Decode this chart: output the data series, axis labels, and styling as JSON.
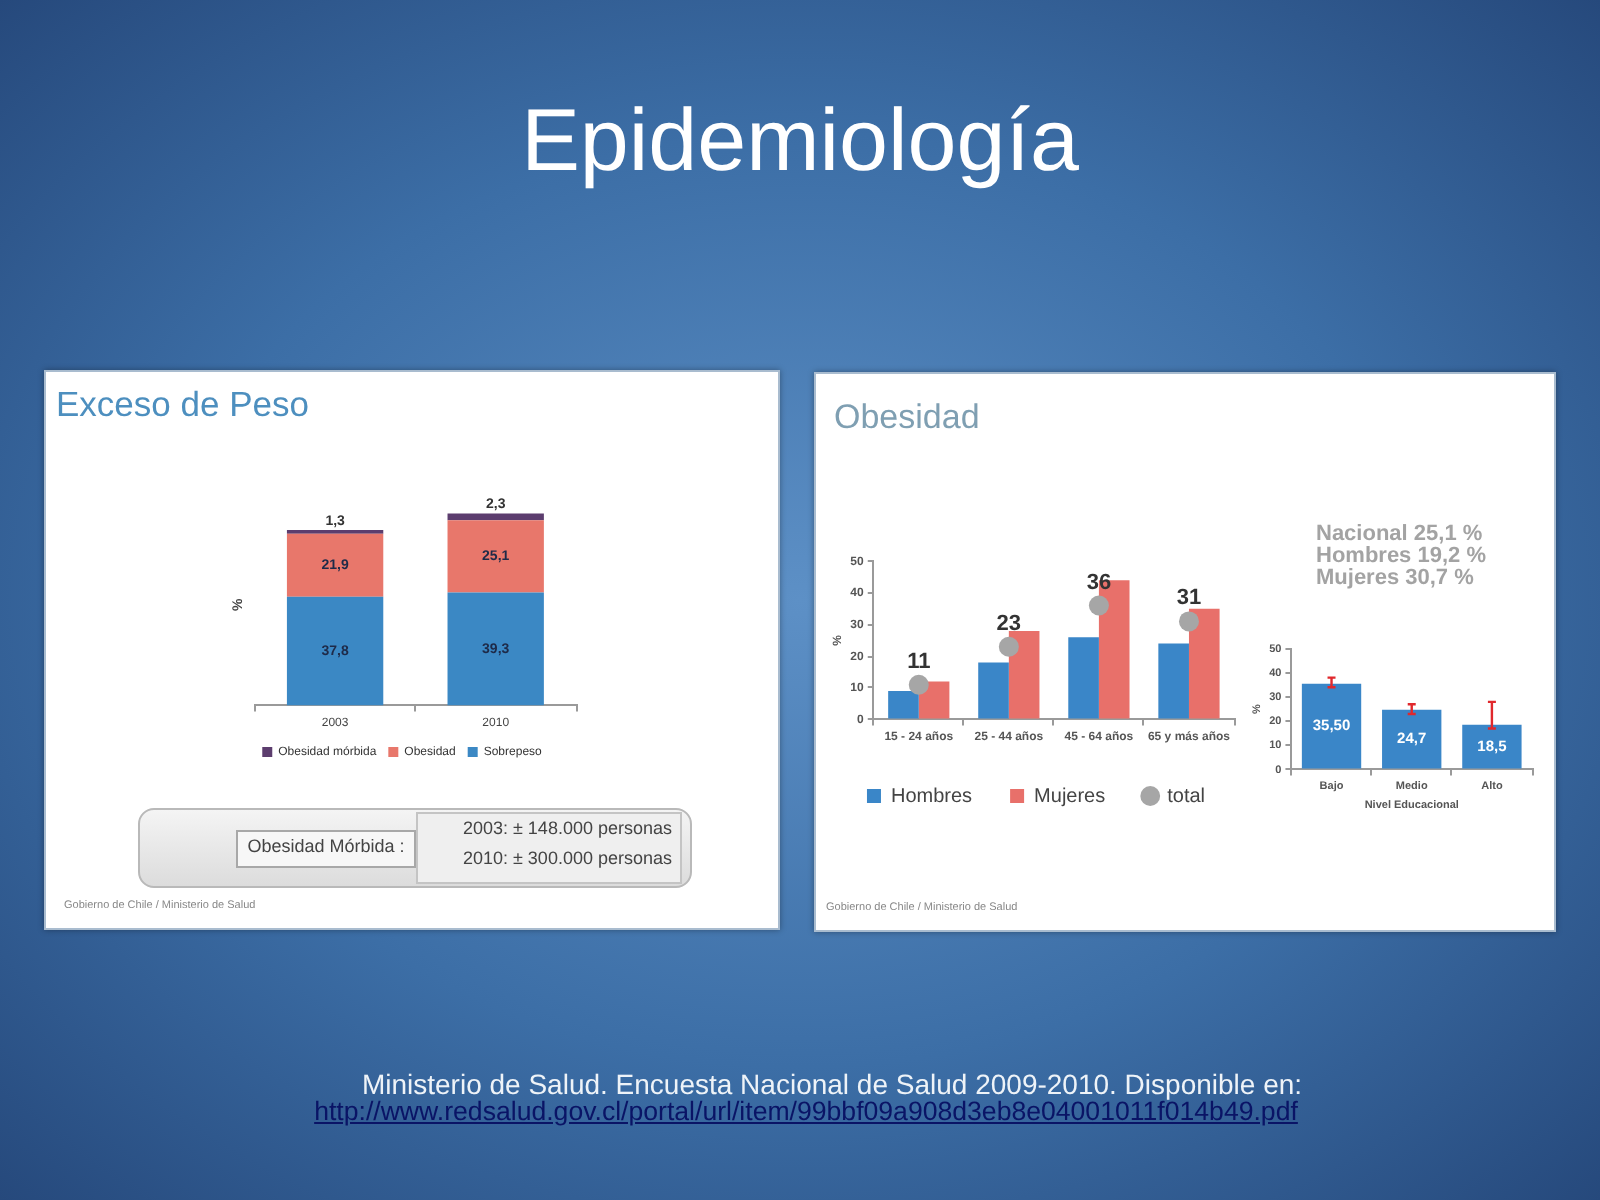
{
  "chart_data": [
    {
      "type": "other",
      "title": "Epidemiología",
      "annotations": [
        "Ministerio de Salud. Encuesta Nacional de Salud 2009-2010. Disponible en:",
        "http://www.redsalud.gov.cl/portal/url/item/99bbf09a908d3eb8e04001011f014b49.pdf"
      ]
    },
    {
      "type": "bar",
      "title": "Exceso de Peso",
      "ylabel": "%",
      "categories": [
        "2003",
        "2010"
      ],
      "stacked": true,
      "tick_labels": "x",
      "legend": "bottom",
      "series": [
        {
          "name": "Sobrepeso",
          "color": "#3b88c4",
          "values": [
            37.8,
            39.3
          ],
          "value_labels": [
            "37,8",
            "39,3"
          ]
        },
        {
          "name": "Obesidad",
          "color": "#e8776b",
          "values": [
            21.9,
            25.1
          ],
          "value_labels": [
            "21,9",
            "25,1"
          ]
        },
        {
          "name": "Obesidad mórbida",
          "color": "#5c3d6e",
          "values": [
            1.3,
            2.3
          ],
          "value_labels": [
            "1,3",
            "2,3"
          ]
        }
      ],
      "annotations": [
        "Obesidad Mórbida :",
        "2003: ± 148.000 personas",
        "2010: ± 300.000 personas",
        "Gobierno de Chile / Ministerio de Salud"
      ]
    },
    {
      "type": "bar",
      "title": "Obesidad",
      "ylabel": "%",
      "categories": [
        "15 - 24 años",
        "25 - 44 años",
        "45 - 64 años",
        "65 y más años"
      ],
      "ylim": [
        0,
        50
      ],
      "yticks": [
        0,
        10,
        20,
        30,
        40,
        50
      ],
      "legend": "bottom",
      "series": [
        {
          "name": "Hombres",
          "color": "#3a86c8",
          "values": [
            9,
            18,
            26,
            24
          ]
        },
        {
          "name": "Mujeres",
          "color": "#e8706a",
          "values": [
            12,
            28,
            44,
            35
          ]
        },
        {
          "name": "total",
          "type": "scatter",
          "marker": "circle",
          "color": "#a6a6a6",
          "x": [
            "15 - 24 años",
            "25 - 44 años",
            "45 - 64 años",
            "65 y más años"
          ],
          "values": [
            11,
            23,
            36,
            31
          ],
          "value_labels": [
            "11",
            "23",
            "36",
            "31"
          ]
        }
      ],
      "annotations": [
        "Gobierno de Chile / Ministerio de Salud"
      ]
    },
    {
      "type": "bar",
      "xlabel": "Nivel Educacional",
      "ylabel": "%",
      "categories": [
        "Bajo",
        "Medio",
        "Alto"
      ],
      "values": [
        35.5,
        24.7,
        18.5
      ],
      "value_labels": [
        "35,50",
        "24,7",
        "18,5"
      ],
      "color": "#3a86c8",
      "errors": [
        [
          34,
          38
        ],
        [
          23,
          27
        ],
        [
          17,
          28
        ]
      ],
      "ylim": [
        0,
        50
      ],
      "yticks": [
        0,
        10,
        20,
        30,
        40,
        50
      ],
      "annotations": [
        "Nacional 25,1 %",
        "Hombres 19,2 %",
        "Mujeres 30,7 %"
      ]
    }
  ]
}
